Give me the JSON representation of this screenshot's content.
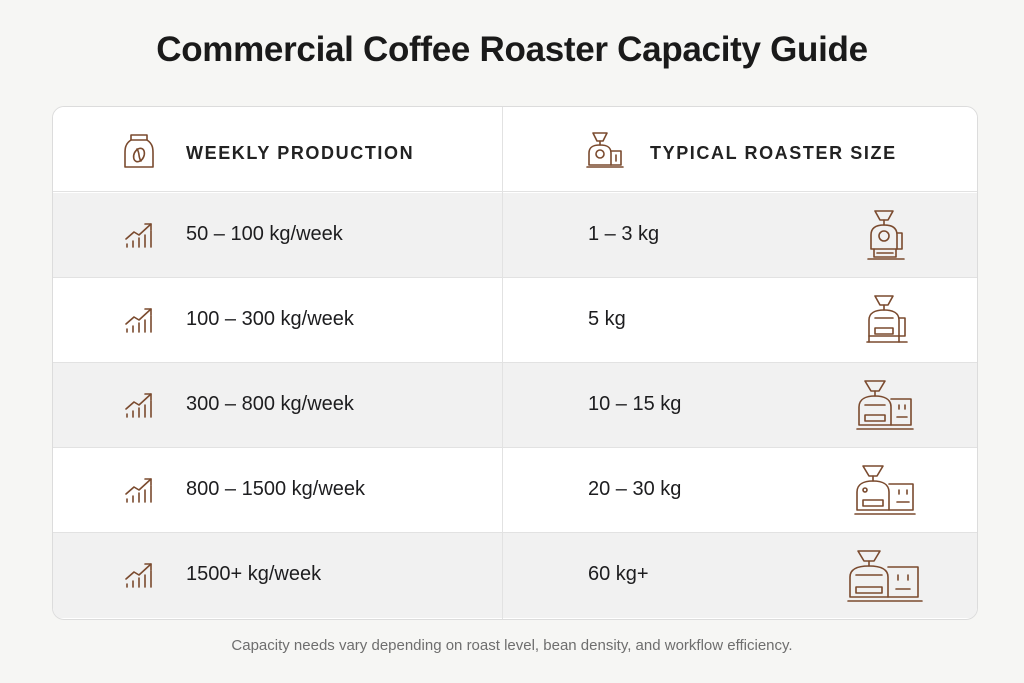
{
  "title": "Commercial Coffee Roaster Capacity Guide",
  "columns": {
    "production": {
      "label": "WEEKLY PRODUCTION",
      "icon": "coffee-bag-icon"
    },
    "roaster": {
      "label": "TYPICAL ROASTER SIZE",
      "icon": "roaster-icon"
    }
  },
  "rows": [
    {
      "production": "50 – 100 kg/week",
      "roaster": "1 – 3 kg",
      "icon": "growth-chart-icon",
      "roaster_icon": "roaster-small-icon"
    },
    {
      "production": "100 – 300 kg/week",
      "roaster": "5 kg",
      "icon": "growth-chart-icon",
      "roaster_icon": "roaster-small-icon"
    },
    {
      "production": "300 – 800 kg/week",
      "roaster": "10 – 15 kg",
      "icon": "growth-chart-icon",
      "roaster_icon": "roaster-medium-icon"
    },
    {
      "production": "800 – 1500 kg/week",
      "roaster": "20 – 30 kg",
      "icon": "growth-chart-icon",
      "roaster_icon": "roaster-medium-icon"
    },
    {
      "production": "1500+ kg/week",
      "roaster": "60 kg+",
      "icon": "growth-chart-icon",
      "roaster_icon": "roaster-large-icon"
    }
  ],
  "footnote": "Capacity needs vary depending on roast level, bean density, and workflow efficiency.",
  "colors": {
    "accent": "#7a4a2e",
    "row_shade": "#f1f1f1",
    "border": "#dcdcdc"
  }
}
